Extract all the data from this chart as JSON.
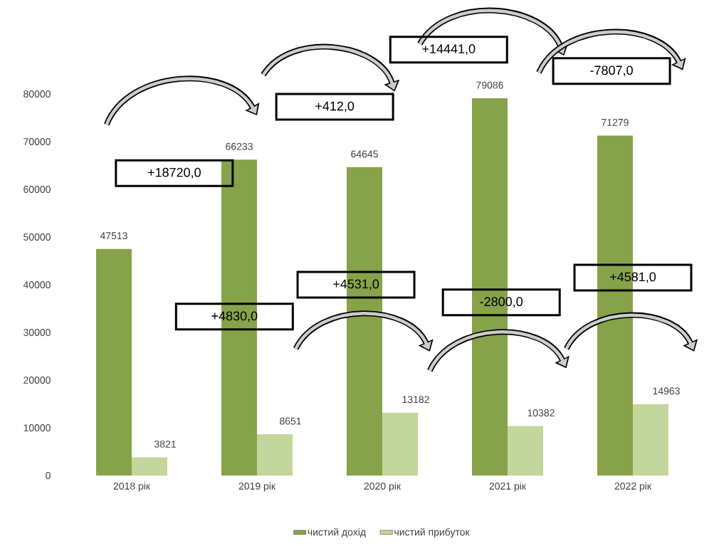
{
  "chart_data": {
    "type": "bar",
    "categories": [
      "2018 рік",
      "2019 рік",
      "2020 рік",
      "2021 рік",
      "2022 рік"
    ],
    "series": [
      {
        "name": "чистий дохід",
        "color": "#86a34a",
        "values": [
          47513,
          66233,
          64645,
          79086,
          71279
        ]
      },
      {
        "name": "чистий прибуток",
        "color": "#c3d69b",
        "values": [
          3821,
          8651,
          13182,
          10382,
          14963
        ]
      }
    ],
    "ylim": [
      0,
      80000
    ],
    "yticks": [
      0,
      10000,
      20000,
      30000,
      40000,
      50000,
      60000,
      70000,
      80000
    ],
    "data_labels": true,
    "legend": "bottom",
    "annotations": [
      "+18720,0",
      "+412,0",
      "+14441,0",
      "-7807,0",
      "+4830,0",
      "+4531,0",
      "-2800,0",
      "+4581,0"
    ]
  }
}
